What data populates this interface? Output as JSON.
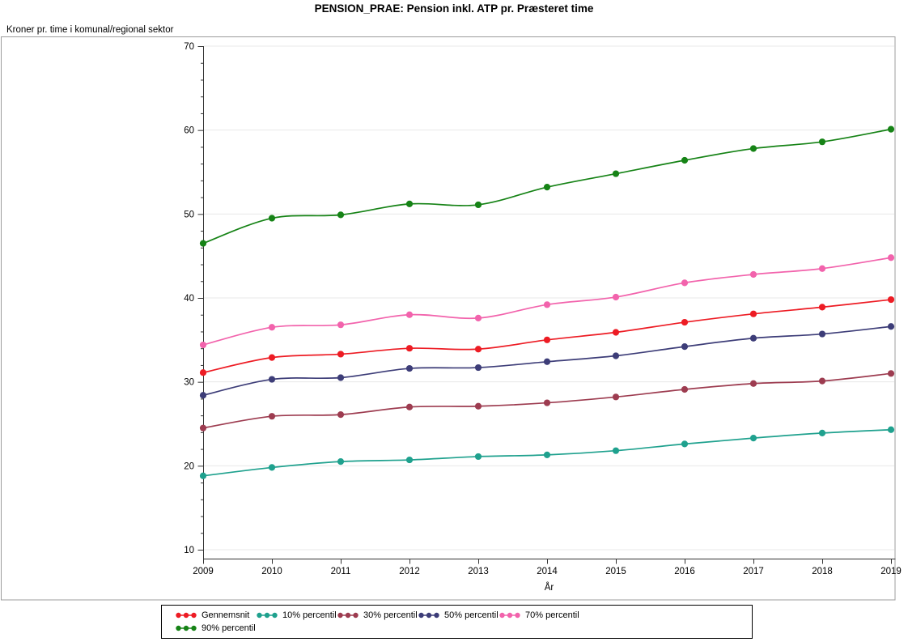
{
  "chart_data": {
    "type": "line",
    "title": "PENSION_PRAE: Pension inkl. ATP pr. Præsteret time",
    "ylabel": "Kroner pr. time i komunal/regional sektor",
    "xlabel": "År",
    "categories": [
      "2009",
      "2010",
      "2011",
      "2012",
      "2013",
      "2014",
      "2015",
      "2016",
      "2017",
      "2018",
      "2019"
    ],
    "ylim": [
      10,
      70
    ],
    "yticks": [
      10,
      20,
      30,
      40,
      50,
      60,
      70
    ],
    "grid": "horizontal",
    "legend_position": "bottom",
    "series": [
      {
        "name": "Gennemsnit",
        "color": "#ed1c24",
        "values": [
          31.1,
          32.9,
          33.3,
          34.0,
          33.9,
          35.0,
          35.9,
          37.1,
          38.1,
          38.9,
          39.8
        ]
      },
      {
        "name": "10% percentil",
        "color": "#1fa18e",
        "values": [
          18.8,
          19.8,
          20.5,
          20.7,
          21.1,
          21.3,
          21.8,
          22.6,
          23.3,
          23.9,
          24.3
        ]
      },
      {
        "name": "30% percentil",
        "color": "#9d3c50",
        "values": [
          24.5,
          25.9,
          26.1,
          27.0,
          27.1,
          27.5,
          28.2,
          29.1,
          29.8,
          30.1,
          31.0
        ]
      },
      {
        "name": "50% percentil",
        "color": "#3d3d78",
        "values": [
          28.4,
          30.3,
          30.5,
          31.6,
          31.7,
          32.4,
          33.1,
          34.2,
          35.2,
          35.7,
          36.6
        ]
      },
      {
        "name": "70% percentil",
        "color": "#f263ac",
        "values": [
          34.4,
          36.5,
          36.8,
          38.0,
          37.6,
          39.2,
          40.1,
          41.8,
          42.8,
          43.5,
          44.8
        ]
      },
      {
        "name": "90% percentil",
        "color": "#168316",
        "values": [
          46.5,
          49.5,
          49.9,
          51.2,
          51.1,
          53.2,
          54.8,
          56.4,
          57.8,
          58.6,
          60.1
        ]
      }
    ]
  }
}
